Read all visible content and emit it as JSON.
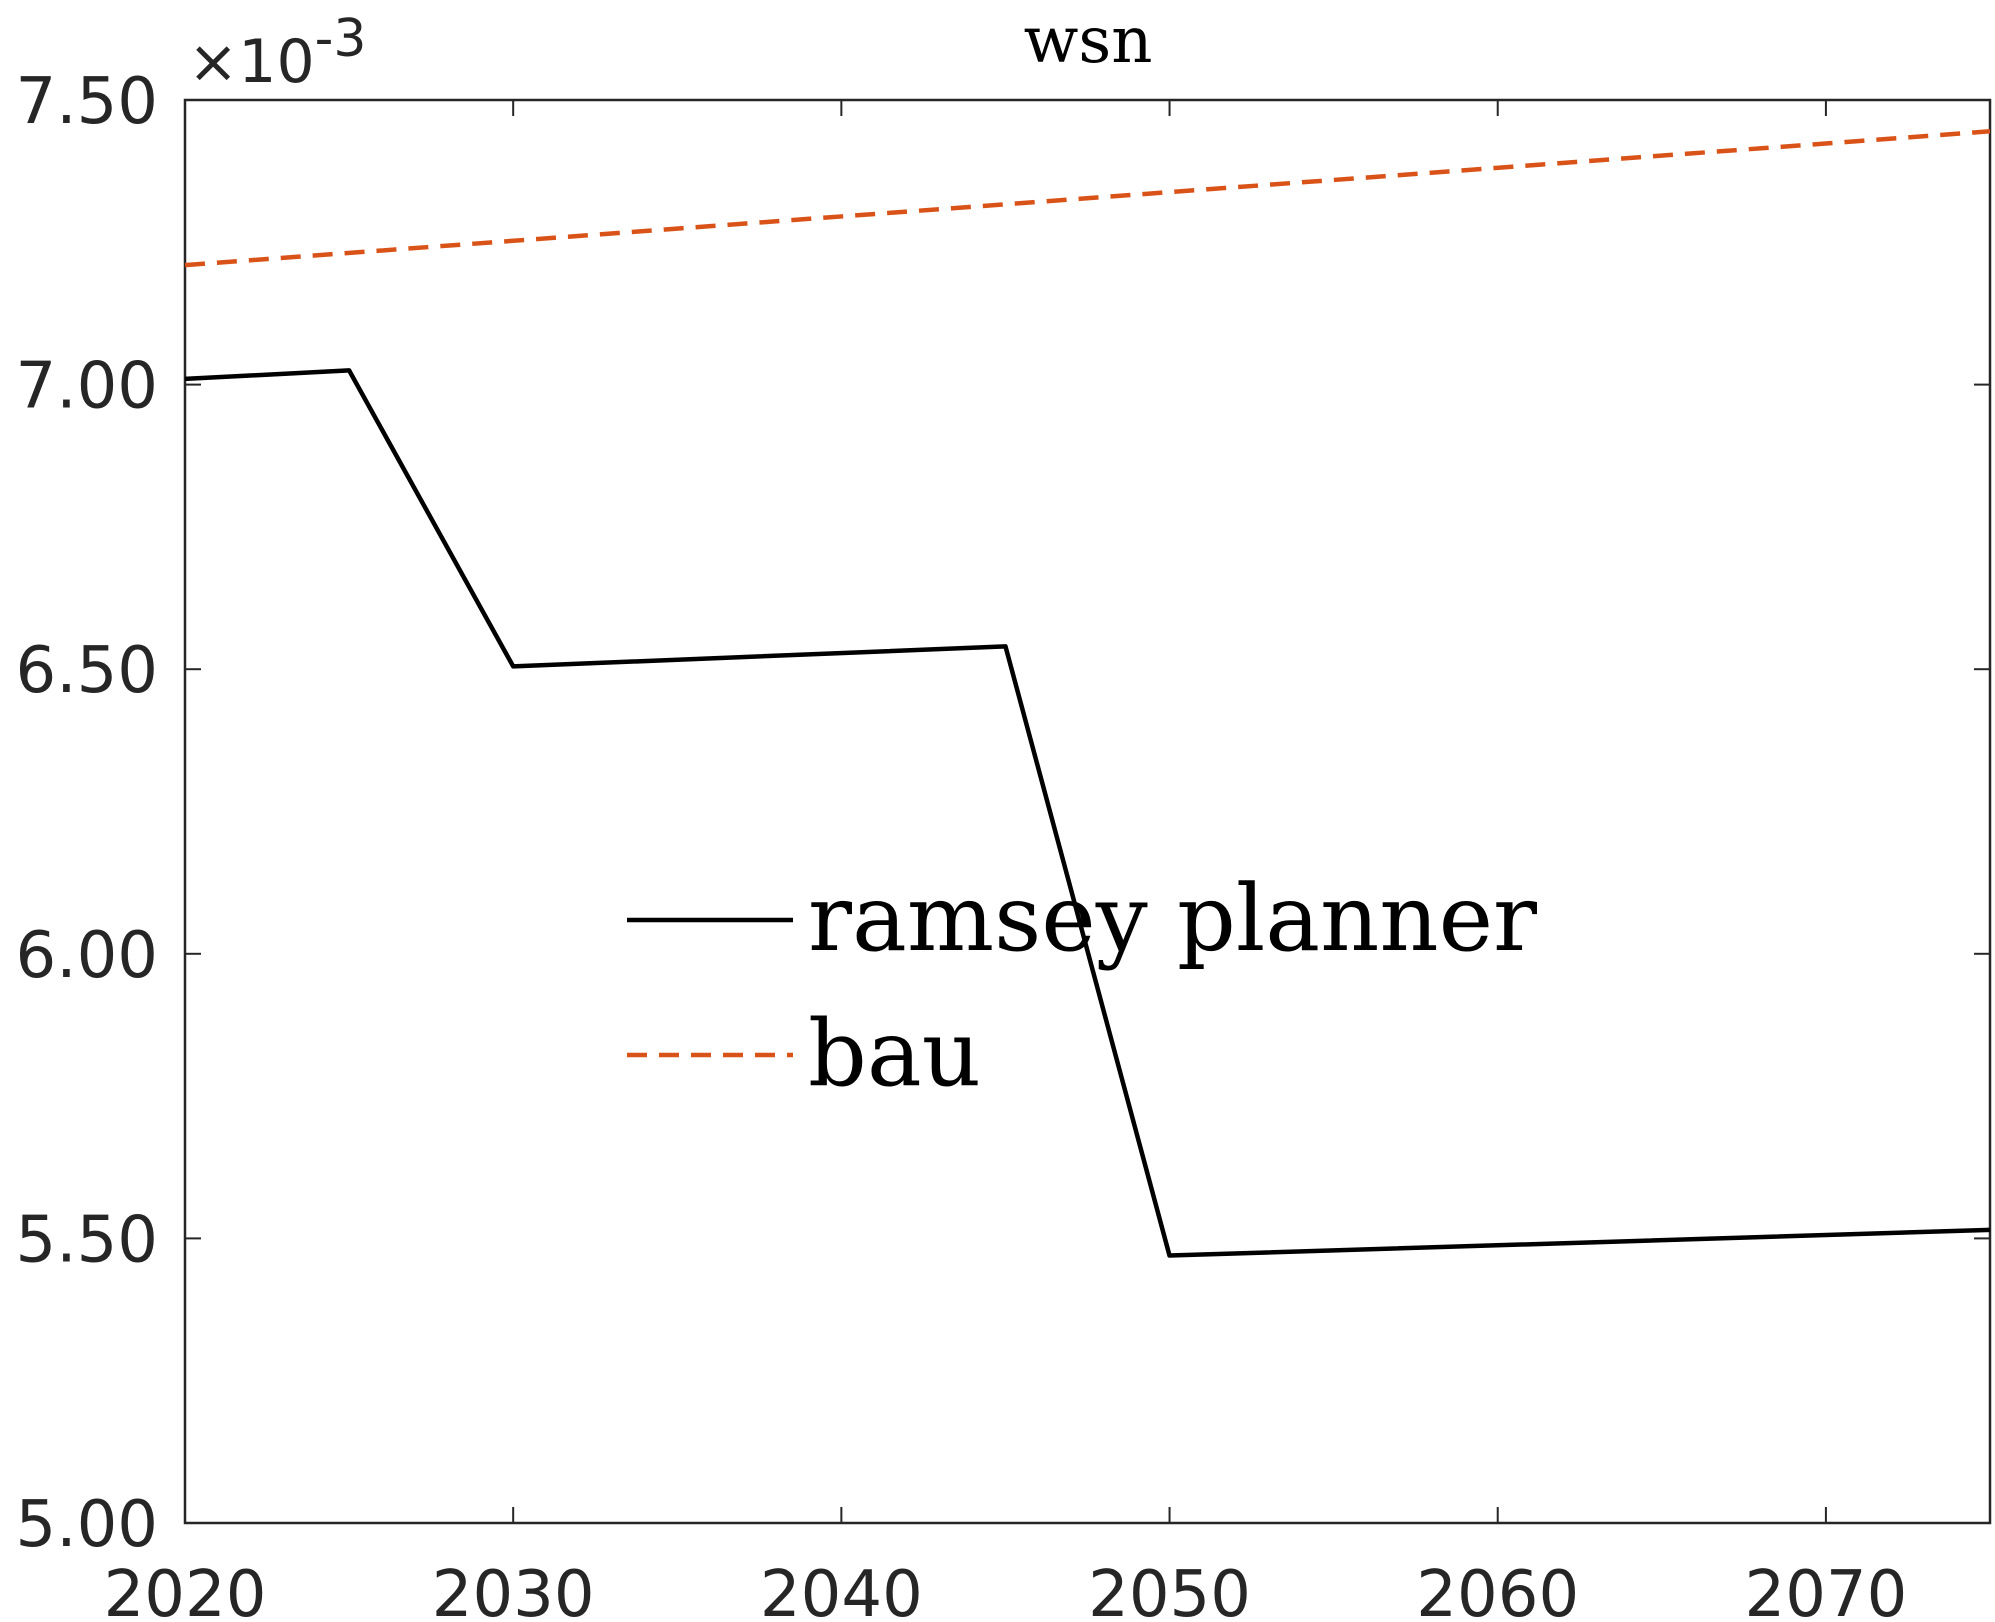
{
  "chart_data": {
    "type": "line",
    "title": "wsn",
    "xlabel": "",
    "ylabel": "",
    "exponent_label": "×10",
    "exponent_power": "-3",
    "xlim": [
      2020,
      2075
    ],
    "ylim": [
      5.0,
      7.5
    ],
    "x_ticks": [
      2020,
      2030,
      2040,
      2050,
      2060,
      2070
    ],
    "x_tick_labels": [
      "2020",
      "2030",
      "2040",
      "2050",
      "2060",
      "2070"
    ],
    "y_ticks": [
      5.0,
      5.5,
      6.0,
      6.5,
      7.0,
      7.5
    ],
    "y_tick_labels": [
      "5.00",
      "5.50",
      "6.00",
      "6.50",
      "7.00",
      "7.50"
    ],
    "grid": false,
    "legend_position": "center",
    "series": [
      {
        "name": "ramsey planner",
        "color": "#000000",
        "style": "solid",
        "x": [
          2020,
          2025,
          2030,
          2045,
          2050,
          2075
        ],
        "y": [
          7.01,
          7.025,
          6.505,
          6.54,
          5.47,
          5.515
        ]
      },
      {
        "name": "bau",
        "color": "#D95319",
        "style": "dashed",
        "x": [
          2020,
          2075
        ],
        "y": [
          7.21,
          7.445
        ]
      }
    ]
  }
}
